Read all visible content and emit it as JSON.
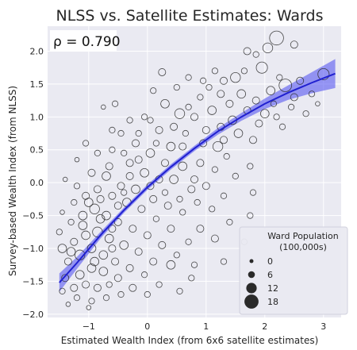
{
  "chart_data": {
    "type": "scatter",
    "title": "NLSS vs. Satellite Estimates: Wards",
    "xlabel": "Estimated Wealth Index (from 6x6 satellite estimates)",
    "ylabel": "Survey-based Wealth Index (from NLSS)",
    "xlim": [
      -1.7,
      3.3
    ],
    "ylim": [
      -2.05,
      2.38
    ],
    "x_ticks": [
      {
        "value": -1,
        "label": "−1"
      },
      {
        "value": 0,
        "label": "0"
      },
      {
        "value": 1,
        "label": "1"
      },
      {
        "value": 2,
        "label": "2"
      },
      {
        "value": 3,
        "label": "3"
      }
    ],
    "y_ticks": [
      {
        "value": -2.0,
        "label": "−2.0"
      },
      {
        "value": -1.5,
        "label": "−1.5"
      },
      {
        "value": -1.0,
        "label": "−1.0"
      },
      {
        "value": -0.5,
        "label": "−0.5"
      },
      {
        "value": 0.0,
        "label": "0.0"
      },
      {
        "value": 0.5,
        "label": "0.5"
      },
      {
        "value": 1.0,
        "label": "1.0"
      },
      {
        "value": 1.5,
        "label": "1.5"
      },
      {
        "value": 2.0,
        "label": "2.0"
      }
    ],
    "grid": true,
    "annotation": "ρ = 0.790",
    "fit_line": {
      "color": "#2020d0",
      "band_color": "#4848f0",
      "points": [
        {
          "x": -1.5,
          "y": -1.52,
          "band": 0.14
        },
        {
          "x": -1.2,
          "y": -1.22,
          "band": 0.09
        },
        {
          "x": -0.8,
          "y": -0.8,
          "band": 0.05
        },
        {
          "x": -0.4,
          "y": -0.42,
          "band": 0.04
        },
        {
          "x": 0.0,
          "y": -0.07,
          "band": 0.04
        },
        {
          "x": 0.4,
          "y": 0.24,
          "band": 0.04
        },
        {
          "x": 0.8,
          "y": 0.52,
          "band": 0.04
        },
        {
          "x": 1.2,
          "y": 0.78,
          "band": 0.05
        },
        {
          "x": 1.6,
          "y": 1.0,
          "band": 0.06
        },
        {
          "x": 2.0,
          "y": 1.2,
          "band": 0.08
        },
        {
          "x": 2.4,
          "y": 1.37,
          "band": 0.11
        },
        {
          "x": 2.8,
          "y": 1.52,
          "band": 0.16
        },
        {
          "x": 3.2,
          "y": 1.66,
          "band": 0.22
        }
      ]
    },
    "legend": {
      "title_line1": "Ward Population",
      "title_line2": "(100,000s)",
      "position": "lower-right",
      "entries": [
        {
          "label": "0",
          "size": 0
        },
        {
          "label": "6",
          "size": 6
        },
        {
          "label": "12",
          "size": 12
        },
        {
          "label": "18",
          "size": 18
        }
      ]
    },
    "points": [
      {
        "x": 2.2,
        "y": 2.2,
        "s": 8
      },
      {
        "x": 2.05,
        "y": 2.05,
        "s": 5
      },
      {
        "x": 2.5,
        "y": 2.1,
        "s": 3
      },
      {
        "x": 1.7,
        "y": 2.0,
        "s": 3
      },
      {
        "x": 1.85,
        "y": 1.95,
        "s": 2
      },
      {
        "x": 1.95,
        "y": 1.75,
        "s": 6
      },
      {
        "x": 3.0,
        "y": 1.65,
        "s": 6
      },
      {
        "x": 2.35,
        "y": 1.48,
        "s": 7
      },
      {
        "x": 2.6,
        "y": 1.55,
        "s": 3
      },
      {
        "x": 2.8,
        "y": 1.35,
        "s": 2
      },
      {
        "x": 2.9,
        "y": 1.2,
        "s": 1
      },
      {
        "x": 1.5,
        "y": 1.6,
        "s": 5
      },
      {
        "x": 1.3,
        "y": 1.55,
        "s": 3
      },
      {
        "x": 1.15,
        "y": 1.7,
        "s": 2
      },
      {
        "x": 1.05,
        "y": 1.45,
        "s": 2
      },
      {
        "x": 1.6,
        "y": 1.35,
        "s": 4
      },
      {
        "x": 1.85,
        "y": 1.25,
        "s": 3
      },
      {
        "x": 2.15,
        "y": 1.2,
        "s": 2
      },
      {
        "x": 2.45,
        "y": 1.15,
        "s": 2
      },
      {
        "x": 2.0,
        "y": 1.05,
        "s": 4
      },
      {
        "x": 1.4,
        "y": 1.2,
        "s": 3
      },
      {
        "x": 1.1,
        "y": 1.1,
        "s": 4
      },
      {
        "x": 0.9,
        "y": 1.3,
        "s": 2
      },
      {
        "x": 0.7,
        "y": 1.6,
        "s": 2
      },
      {
        "x": 0.25,
        "y": 1.68,
        "s": 3
      },
      {
        "x": 0.5,
        "y": 1.45,
        "s": 2
      },
      {
        "x": 0.3,
        "y": 1.2,
        "s": 4
      },
      {
        "x": 0.55,
        "y": 1.05,
        "s": 5
      },
      {
        "x": 0.8,
        "y": 1.0,
        "s": 3
      },
      {
        "x": 1.25,
        "y": 0.85,
        "s": 3
      },
      {
        "x": 1.55,
        "y": 0.75,
        "s": 4
      },
      {
        "x": 1.8,
        "y": 0.65,
        "s": 3
      },
      {
        "x": 2.3,
        "y": 0.85,
        "s": 2
      },
      {
        "x": 1.2,
        "y": 0.55,
        "s": 5
      },
      {
        "x": 0.95,
        "y": 0.6,
        "s": 3
      },
      {
        "x": 0.65,
        "y": 0.75,
        "s": 2
      },
      {
        "x": 0.4,
        "y": 0.55,
        "s": 4
      },
      {
        "x": 0.2,
        "y": 0.8,
        "s": 3
      },
      {
        "x": -0.05,
        "y": 1.0,
        "s": 2
      },
      {
        "x": -0.3,
        "y": 0.95,
        "s": 2
      },
      {
        "x": -0.55,
        "y": 1.2,
        "s": 2
      },
      {
        "x": -0.75,
        "y": 1.15,
        "s": 1
      },
      {
        "x": -0.45,
        "y": 0.75,
        "s": 2
      },
      {
        "x": -0.2,
        "y": 0.6,
        "s": 3
      },
      {
        "x": 0.05,
        "y": 0.45,
        "s": 4
      },
      {
        "x": 0.3,
        "y": 0.3,
        "s": 3
      },
      {
        "x": 0.6,
        "y": 0.25,
        "s": 4
      },
      {
        "x": 0.9,
        "y": 0.3,
        "s": 3
      },
      {
        "x": 1.15,
        "y": 0.2,
        "s": 2
      },
      {
        "x": 1.35,
        "y": 0.4,
        "s": 2
      },
      {
        "x": 1.5,
        "y": 0.1,
        "s": 2
      },
      {
        "x": 1.75,
        "y": 0.25,
        "s": 2
      },
      {
        "x": 1.0,
        "y": -0.05,
        "s": 3
      },
      {
        "x": 0.75,
        "y": -0.1,
        "s": 3
      },
      {
        "x": 0.45,
        "y": 0.05,
        "s": 4
      },
      {
        "x": 0.2,
        "y": 0.05,
        "s": 3
      },
      {
        "x": -0.05,
        "y": 0.15,
        "s": 4
      },
      {
        "x": -0.3,
        "y": 0.3,
        "s": 3
      },
      {
        "x": -0.6,
        "y": 0.5,
        "s": 2
      },
      {
        "x": -0.85,
        "y": 0.45,
        "s": 2
      },
      {
        "x": -1.05,
        "y": 0.6,
        "s": 2
      },
      {
        "x": -1.2,
        "y": 0.35,
        "s": 1
      },
      {
        "x": -1.4,
        "y": 0.05,
        "s": 1
      },
      {
        "x": -0.95,
        "y": 0.15,
        "s": 3
      },
      {
        "x": -0.7,
        "y": 0.1,
        "s": 4
      },
      {
        "x": -0.45,
        "y": -0.05,
        "s": 3
      },
      {
        "x": -0.2,
        "y": -0.1,
        "s": 4
      },
      {
        "x": 0.1,
        "y": -0.25,
        "s": 3
      },
      {
        "x": 0.35,
        "y": -0.35,
        "s": 3
      },
      {
        "x": 0.6,
        "y": -0.45,
        "s": 2
      },
      {
        "x": 0.85,
        "y": -0.3,
        "s": 2
      },
      {
        "x": 1.1,
        "y": -0.4,
        "s": 2
      },
      {
        "x": 1.3,
        "y": -0.2,
        "s": 2
      },
      {
        "x": 1.8,
        "y": -0.15,
        "s": 2
      },
      {
        "x": 1.75,
        "y": -0.5,
        "s": 2
      },
      {
        "x": 1.15,
        "y": -0.85,
        "s": 3
      },
      {
        "x": 0.9,
        "y": -0.7,
        "s": 3
      },
      {
        "x": 0.7,
        "y": -0.9,
        "s": 2
      },
      {
        "x": 0.4,
        "y": -0.7,
        "s": 3
      },
      {
        "x": 0.15,
        "y": -0.55,
        "s": 2
      },
      {
        "x": -0.1,
        "y": -0.4,
        "s": 3
      },
      {
        "x": -0.35,
        "y": -0.3,
        "s": 4
      },
      {
        "x": -0.6,
        "y": -0.2,
        "s": 3
      },
      {
        "x": -0.85,
        "y": -0.1,
        "s": 3
      },
      {
        "x": -1.05,
        "y": -0.2,
        "s": 3
      },
      {
        "x": -1.25,
        "y": -0.3,
        "s": 2
      },
      {
        "x": -1.45,
        "y": -0.45,
        "s": 1
      },
      {
        "x": -1.3,
        "y": -0.6,
        "s": 2
      },
      {
        "x": -1.1,
        "y": -0.5,
        "s": 4
      },
      {
        "x": -0.9,
        "y": -0.4,
        "s": 5
      },
      {
        "x": -0.7,
        "y": -0.5,
        "s": 4
      },
      {
        "x": -0.5,
        "y": -0.6,
        "s": 3
      },
      {
        "x": -0.25,
        "y": -0.7,
        "s": 3
      },
      {
        "x": 0.0,
        "y": -0.8,
        "s": 3
      },
      {
        "x": 0.25,
        "y": -0.95,
        "s": 3
      },
      {
        "x": 0.5,
        "y": -1.1,
        "s": 2
      },
      {
        "x": 0.8,
        "y": -1.25,
        "s": 2
      },
      {
        "x": 1.3,
        "y": -1.2,
        "s": 2
      },
      {
        "x": 0.4,
        "y": -1.25,
        "s": 4
      },
      {
        "x": 0.1,
        "y": -1.2,
        "s": 3
      },
      {
        "x": -0.15,
        "y": -1.05,
        "s": 3
      },
      {
        "x": -0.4,
        "y": -0.95,
        "s": 4
      },
      {
        "x": -0.65,
        "y": -0.85,
        "s": 4
      },
      {
        "x": -0.85,
        "y": -0.75,
        "s": 5
      },
      {
        "x": -1.05,
        "y": -0.8,
        "s": 4
      },
      {
        "x": -1.25,
        "y": -0.9,
        "s": 3
      },
      {
        "x": -1.45,
        "y": -1.0,
        "s": 4
      },
      {
        "x": -1.35,
        "y": -1.2,
        "s": 3
      },
      {
        "x": -1.15,
        "y": -1.1,
        "s": 5
      },
      {
        "x": -0.95,
        "y": -1.0,
        "s": 4
      },
      {
        "x": -0.75,
        "y": -1.1,
        "s": 4
      },
      {
        "x": -0.55,
        "y": -1.2,
        "s": 3
      },
      {
        "x": -0.3,
        "y": -1.3,
        "s": 3
      },
      {
        "x": -0.05,
        "y": -1.4,
        "s": 2
      },
      {
        "x": 0.2,
        "y": -1.55,
        "s": 2
      },
      {
        "x": 0.55,
        "y": -1.65,
        "s": 2
      },
      {
        "x": 0.0,
        "y": -1.7,
        "s": 2
      },
      {
        "x": -0.25,
        "y": -1.6,
        "s": 3
      },
      {
        "x": -0.5,
        "y": -1.45,
        "s": 3
      },
      {
        "x": -0.75,
        "y": -1.35,
        "s": 4
      },
      {
        "x": -0.95,
        "y": -1.3,
        "s": 4
      },
      {
        "x": -1.15,
        "y": -1.4,
        "s": 4
      },
      {
        "x": -1.4,
        "y": -1.45,
        "s": 3
      },
      {
        "x": -1.25,
        "y": -1.6,
        "s": 3
      },
      {
        "x": -1.05,
        "y": -1.55,
        "s": 3
      },
      {
        "x": -0.85,
        "y": -1.6,
        "s": 3
      },
      {
        "x": -0.65,
        "y": -1.55,
        "s": 2
      },
      {
        "x": -0.45,
        "y": -1.7,
        "s": 2
      },
      {
        "x": -0.7,
        "y": -1.75,
        "s": 2
      },
      {
        "x": -0.95,
        "y": -1.8,
        "s": 2
      },
      {
        "x": -1.2,
        "y": -1.75,
        "s": 2
      },
      {
        "x": -1.35,
        "y": -1.85,
        "s": 1
      },
      {
        "x": -1.0,
        "y": -1.9,
        "s": 1
      },
      {
        "x": -0.8,
        "y": -0.25,
        "s": 3
      },
      {
        "x": -0.65,
        "y": 0.25,
        "s": 3
      },
      {
        "x": -0.4,
        "y": 0.45,
        "s": 2
      },
      {
        "x": -0.15,
        "y": 0.35,
        "s": 3
      },
      {
        "x": 0.15,
        "y": 0.6,
        "s": 2
      },
      {
        "x": 0.45,
        "y": 0.85,
        "s": 3
      },
      {
        "x": 0.7,
        "y": 1.15,
        "s": 2
      },
      {
        "x": 1.0,
        "y": 0.8,
        "s": 3
      },
      {
        "x": 1.45,
        "y": 0.95,
        "s": 4
      },
      {
        "x": 1.7,
        "y": 1.1,
        "s": 3
      },
      {
        "x": 2.1,
        "y": 1.4,
        "s": 4
      },
      {
        "x": 2.5,
        "y": 1.3,
        "s": 3
      },
      {
        "x": 2.7,
        "y": 1.05,
        "s": 2
      },
      {
        "x": 2.25,
        "y": 1.6,
        "s": 2
      },
      {
        "x": 1.65,
        "y": 1.7,
        "s": 2
      },
      {
        "x": -0.5,
        "y": -0.35,
        "s": 3
      },
      {
        "x": -0.3,
        "y": 0.1,
        "s": 3
      },
      {
        "x": 0.05,
        "y": -0.05,
        "s": 3
      },
      {
        "x": 0.3,
        "y": -0.15,
        "s": 2
      },
      {
        "x": -1.2,
        "y": -0.05,
        "s": 2
      },
      {
        "x": -1.0,
        "y": -0.3,
        "s": 4
      },
      {
        "x": -0.8,
        "y": -0.55,
        "s": 4
      },
      {
        "x": -1.1,
        "y": -0.65,
        "s": 4
      },
      {
        "x": -0.6,
        "y": -0.7,
        "s": 3
      },
      {
        "x": -0.9,
        "y": -1.2,
        "s": 4
      },
      {
        "x": -0.6,
        "y": -1.0,
        "s": 3
      },
      {
        "x": -1.3,
        "y": -1.05,
        "s": 4
      },
      {
        "x": -0.4,
        "y": -0.15,
        "s": 2
      },
      {
        "x": 0.55,
        "y": -0.25,
        "s": 2
      },
      {
        "x": 0.8,
        "y": 0.05,
        "s": 3
      },
      {
        "x": 1.3,
        "y": 0.65,
        "s": 3
      },
      {
        "x": 1.9,
        "y": 0.9,
        "s": 3
      },
      {
        "x": 2.2,
        "y": 1.0,
        "s": 2
      },
      {
        "x": 0.95,
        "y": 1.55,
        "s": 2
      },
      {
        "x": 1.25,
        "y": 1.35,
        "s": 3
      },
      {
        "x": 0.1,
        "y": 1.4,
        "s": 2
      },
      {
        "x": -0.6,
        "y": 0.8,
        "s": 2
      },
      {
        "x": -0.15,
        "y": 0.75,
        "s": 2
      },
      {
        "x": 0.6,
        "y": 0.55,
        "s": 3
      },
      {
        "x": 0.05,
        "y": 0.95,
        "s": 2
      },
      {
        "x": 0.75,
        "y": -1.45,
        "s": 2
      },
      {
        "x": 1.65,
        "y": -0.9,
        "s": 2
      },
      {
        "x": 1.4,
        "y": -0.6,
        "s": 2
      },
      {
        "x": -1.5,
        "y": -0.75,
        "s": 2
      },
      {
        "x": -1.45,
        "y": -1.65,
        "s": 2
      }
    ]
  }
}
